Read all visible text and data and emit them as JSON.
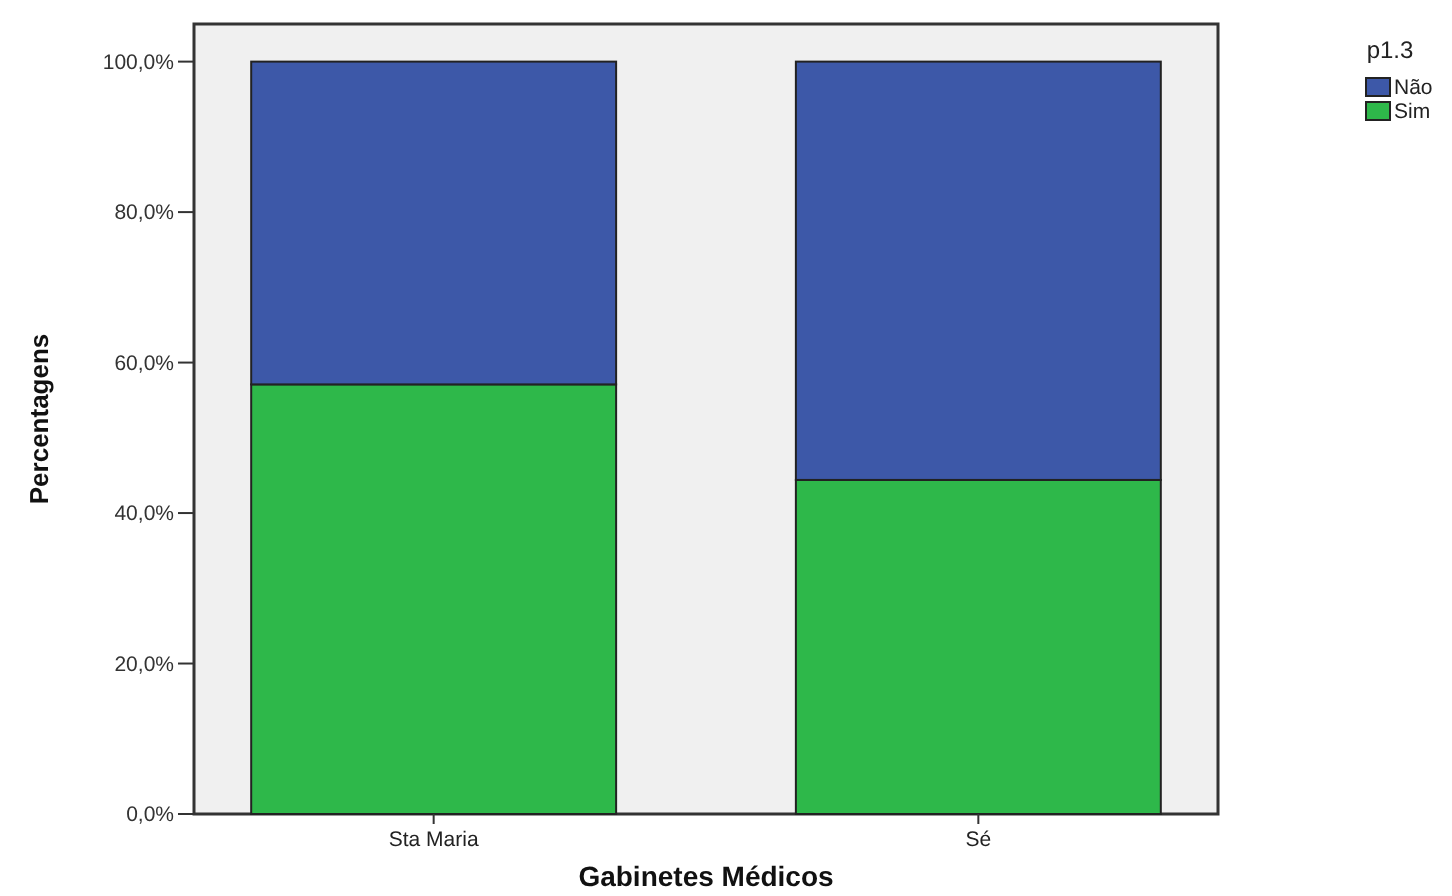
{
  "chart_data": {
    "type": "bar",
    "stacked": true,
    "xlabel": "Gabinetes Médicos",
    "ylabel": "Percentagens",
    "legend_title": "p1.3",
    "legend": "top right",
    "categories": [
      "Sta Maria",
      "Sé"
    ],
    "series": [
      {
        "name": "Sim",
        "color": "#2eb84a",
        "values": [
          57.1,
          44.4
        ]
      },
      {
        "name": "Não",
        "color": "#3d58a8",
        "values": [
          42.9,
          55.6
        ]
      }
    ],
    "ylim": [
      0,
      105
    ],
    "yticks": [
      {
        "value": 0,
        "label": "0,0%"
      },
      {
        "value": 20,
        "label": "20,0%"
      },
      {
        "value": 40,
        "label": "40,0%"
      },
      {
        "value": 60,
        "label": "60,0%"
      },
      {
        "value": 80,
        "label": "80,0%"
      },
      {
        "value": 100,
        "label": "100,0%"
      }
    ]
  }
}
